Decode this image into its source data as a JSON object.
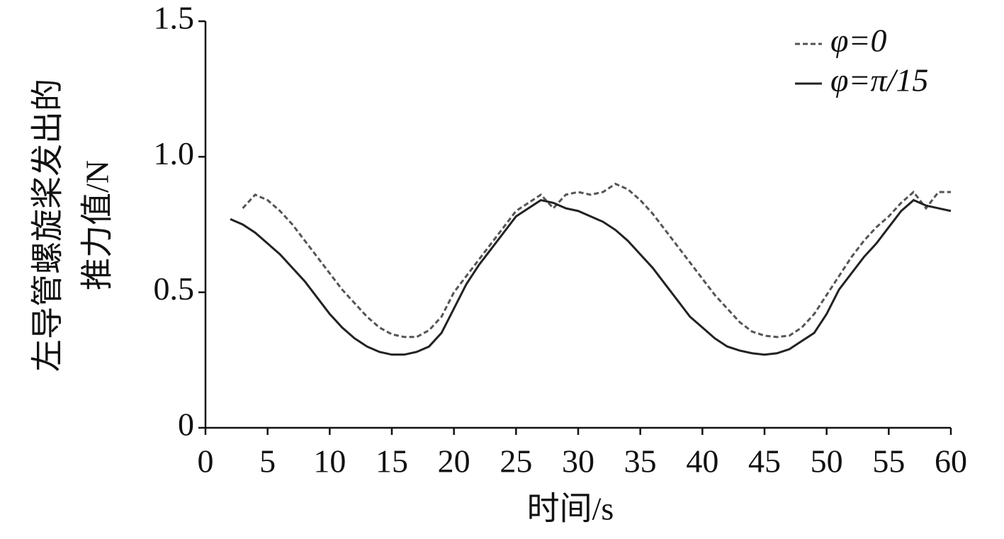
{
  "chart_data": {
    "type": "line",
    "ylabel": [
      "左导管螺旋桨发出的",
      "推力值/N"
    ],
    "xlabel": "时间/s",
    "x": [
      2,
      3,
      4,
      5,
      6,
      7,
      8,
      9,
      10,
      11,
      12,
      13,
      14,
      15,
      16,
      17,
      18,
      19,
      20,
      21,
      22,
      23,
      24,
      25,
      26,
      27,
      28,
      29,
      30,
      31,
      32,
      33,
      34,
      35,
      36,
      37,
      38,
      39,
      40,
      41,
      42,
      43,
      44,
      45,
      46,
      47,
      48,
      49,
      50,
      51,
      52,
      53,
      54,
      55,
      56,
      57,
      58,
      59,
      60
    ],
    "series": [
      {
        "name": "φ=0",
        "color": "#555555",
        "dash": true,
        "values": [
          null,
          0.81,
          0.86,
          0.84,
          0.8,
          0.75,
          0.69,
          0.63,
          0.57,
          0.51,
          0.46,
          0.41,
          0.37,
          0.345,
          0.335,
          0.335,
          0.36,
          0.41,
          0.5,
          0.56,
          0.62,
          0.68,
          0.74,
          0.8,
          0.83,
          0.86,
          0.81,
          0.86,
          0.87,
          0.86,
          0.87,
          0.9,
          0.88,
          0.84,
          0.79,
          0.73,
          0.67,
          0.61,
          0.55,
          0.49,
          0.44,
          0.39,
          0.355,
          0.34,
          0.335,
          0.34,
          0.37,
          0.42,
          0.49,
          0.56,
          0.63,
          0.69,
          0.74,
          0.78,
          0.83,
          0.87,
          0.81,
          0.87,
          0.87
        ]
      },
      {
        "name": "φ=π/15",
        "color": "#222222",
        "dash": false,
        "values": [
          0.77,
          0.75,
          0.72,
          0.68,
          0.64,
          0.59,
          0.54,
          0.48,
          0.42,
          0.37,
          0.33,
          0.3,
          0.28,
          0.27,
          0.27,
          0.28,
          0.3,
          0.35,
          0.44,
          0.53,
          0.6,
          0.66,
          0.72,
          0.78,
          0.81,
          0.84,
          0.83,
          0.81,
          0.8,
          0.78,
          0.76,
          0.73,
          0.69,
          0.64,
          0.59,
          0.53,
          0.47,
          0.41,
          0.37,
          0.33,
          0.3,
          0.285,
          0.275,
          0.27,
          0.275,
          0.29,
          0.32,
          0.35,
          0.42,
          0.51,
          0.57,
          0.63,
          0.68,
          0.74,
          0.8,
          0.84,
          0.82,
          0.81,
          0.8
        ]
      }
    ],
    "xlim": [
      0,
      60
    ],
    "xticks": [
      0,
      5,
      10,
      15,
      20,
      25,
      30,
      35,
      40,
      45,
      50,
      55,
      60
    ],
    "ylim": [
      0,
      1.5
    ],
    "yticks": [
      0,
      0.5,
      {
        "value": 1,
        "label": "1.0"
      },
      1.5
    ],
    "grid": false,
    "legend": "upper right"
  }
}
